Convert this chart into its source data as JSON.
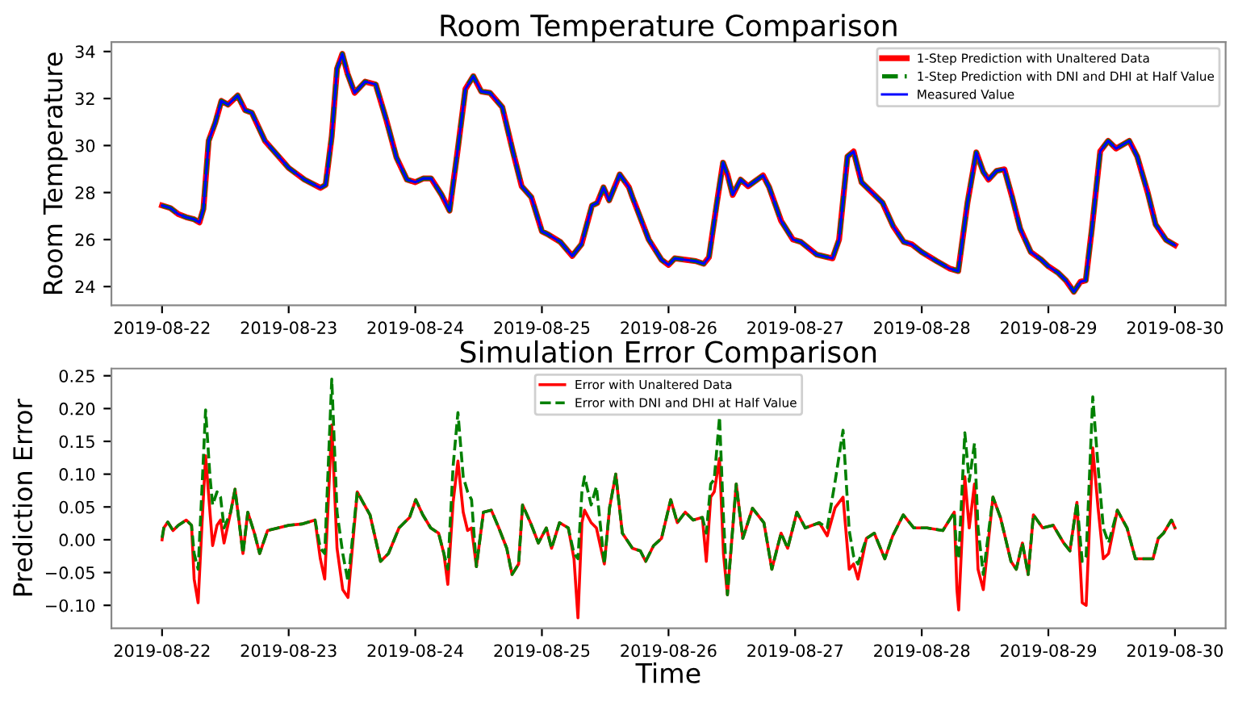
{
  "chart_data": [
    {
      "type": "line",
      "title": "Room Temperature Comparison",
      "ylabel": "Room Temperature",
      "legend": "top right",
      "grid": false,
      "x": [
        "2019-08-22T00:00",
        "2019-08-22T01:35",
        "2019-08-22T03:05",
        "2019-08-22T04:35",
        "2019-08-22T06:05",
        "2019-08-22T07:05",
        "2019-08-22T07:50",
        "2019-08-22T08:50",
        "2019-08-22T10:05",
        "2019-08-22T11:15",
        "2019-08-22T12:30",
        "2019-08-22T14:20",
        "2019-08-22T15:45",
        "2019-08-22T17:00",
        "2019-08-22T19:30",
        "2019-08-23T00:00",
        "2019-08-23T03:00",
        "2019-08-23T06:00",
        "2019-08-23T07:00",
        "2019-08-23T08:10",
        "2019-08-23T09:10",
        "2019-08-23T10:10",
        "2019-08-23T11:10",
        "2019-08-23T12:30",
        "2019-08-23T14:30",
        "2019-08-23T16:30",
        "2019-08-23T18:30",
        "2019-08-23T20:25",
        "2019-08-23T22:25",
        "2019-08-24T00:00",
        "2019-08-24T01:30",
        "2019-08-24T03:00",
        "2019-08-24T05:00",
        "2019-08-24T06:30",
        "2019-08-24T08:00",
        "2019-08-24T09:30",
        "2019-08-24T11:00",
        "2019-08-24T12:30",
        "2019-08-24T14:10",
        "2019-08-24T16:30",
        "2019-08-24T18:30",
        "2019-08-24T20:10",
        "2019-08-24T22:00",
        "2019-08-25T00:00",
        "2019-08-25T01:00",
        "2019-08-25T03:30",
        "2019-08-25T05:45",
        "2019-08-25T07:30",
        "2019-08-25T09:30",
        "2019-08-25T10:30",
        "2019-08-25T11:40",
        "2019-08-25T12:45",
        "2019-08-25T14:45",
        "2019-08-25T16:30",
        "2019-08-25T17:10",
        "2019-08-25T20:15",
        "2019-08-25T22:40",
        "2019-08-26T00:00",
        "2019-08-26T01:10",
        "2019-08-26T03:10",
        "2019-08-26T05:10",
        "2019-08-26T06:40",
        "2019-08-26T07:40",
        "2019-08-26T09:10",
        "2019-08-26T10:20",
        "2019-08-26T11:10",
        "2019-08-26T12:10",
        "2019-08-26T13:40",
        "2019-08-26T15:05",
        "2019-08-26T17:55",
        "2019-08-26T19:05",
        "2019-08-26T21:20",
        "2019-08-26T23:35",
        "2019-08-27T01:05",
        "2019-08-27T04:05",
        "2019-08-27T07:05",
        "2019-08-27T08:20",
        "2019-08-27T09:55",
        "2019-08-27T11:05",
        "2019-08-27T12:35",
        "2019-08-27T14:35",
        "2019-08-27T16:35",
        "2019-08-27T18:35",
        "2019-08-27T20:35",
        "2019-08-27T22:05",
        "2019-08-28T00:00",
        "2019-08-28T02:50",
        "2019-08-28T05:15",
        "2019-08-28T06:55",
        "2019-08-28T08:40",
        "2019-08-28T10:20",
        "2019-08-28T11:40",
        "2019-08-28T12:40",
        "2019-08-28T14:10",
        "2019-08-28T15:40",
        "2019-08-28T17:10",
        "2019-08-28T18:40",
        "2019-08-28T20:40",
        "2019-08-28T22:40",
        "2019-08-29T00:00",
        "2019-08-29T01:50",
        "2019-08-29T03:20",
        "2019-08-29T04:50",
        "2019-08-29T06:05",
        "2019-08-29T07:05",
        "2019-08-29T08:15",
        "2019-08-29T09:50",
        "2019-08-29T11:20",
        "2019-08-29T12:50",
        "2019-08-29T15:20",
        "2019-08-29T16:50",
        "2019-08-29T18:50",
        "2019-08-29T20:20",
        "2019-08-29T22:20",
        "2019-08-30T00:00"
      ],
      "series": [
        {
          "name": "1-Step Prediction with Unaltered Data",
          "color": "#ff0000",
          "line_style": "solid",
          "values": [
            27.45,
            27.34,
            27.08,
            26.95,
            26.86,
            26.73,
            27.3,
            30.2,
            30.97,
            31.9,
            31.74,
            32.13,
            31.5,
            31.4,
            30.2,
            29.05,
            28.55,
            28.2,
            28.33,
            30.4,
            33.27,
            33.9,
            33.05,
            32.24,
            32.72,
            32.6,
            31.1,
            29.5,
            28.55,
            28.44,
            28.6,
            28.6,
            27.9,
            27.23,
            29.75,
            32.4,
            32.95,
            32.3,
            32.24,
            31.63,
            29.75,
            28.27,
            27.8,
            26.35,
            26.24,
            25.9,
            25.3,
            25.8,
            27.45,
            27.56,
            28.22,
            27.67,
            28.77,
            28.22,
            27.8,
            26.0,
            25.14,
            24.92,
            25.2,
            25.14,
            25.08,
            24.97,
            25.25,
            27.56,
            29.27,
            28.77,
            27.9,
            28.55,
            28.27,
            28.73,
            28.22,
            26.8,
            26.0,
            25.9,
            25.36,
            25.2,
            26.0,
            29.53,
            29.75,
            28.44,
            28.0,
            27.56,
            26.57,
            25.9,
            25.8,
            25.47,
            25.08,
            24.77,
            24.66,
            27.56,
            29.71,
            28.88,
            28.55,
            28.92,
            28.99,
            27.78,
            26.46,
            25.47,
            25.14,
            24.86,
            24.59,
            24.26,
            23.78,
            24.2,
            24.26,
            26.46,
            29.76,
            30.2,
            29.87,
            30.2,
            29.54,
            28.0,
            26.64,
            25.98,
            25.76
          ]
        },
        {
          "name": "1-Step Prediction with DNI and DHI at Half Value",
          "color": "#008000",
          "line_style": "dashed",
          "values": [
            27.45,
            27.34,
            27.08,
            26.95,
            26.86,
            26.73,
            27.3,
            30.2,
            30.97,
            31.9,
            31.74,
            32.13,
            31.5,
            31.4,
            30.2,
            29.05,
            28.55,
            28.2,
            28.33,
            30.4,
            33.27,
            33.9,
            33.05,
            32.24,
            32.72,
            32.6,
            31.1,
            29.5,
            28.55,
            28.44,
            28.6,
            28.6,
            27.9,
            27.23,
            29.75,
            32.4,
            32.95,
            32.3,
            32.24,
            31.63,
            29.75,
            28.27,
            27.8,
            26.35,
            26.24,
            25.9,
            25.3,
            25.8,
            27.45,
            27.56,
            28.22,
            27.67,
            28.77,
            28.22,
            27.8,
            26.0,
            25.14,
            24.92,
            25.2,
            25.14,
            25.08,
            24.97,
            25.25,
            27.56,
            29.27,
            28.77,
            27.9,
            28.55,
            28.27,
            28.73,
            28.22,
            26.8,
            26.0,
            25.9,
            25.36,
            25.2,
            26.0,
            29.53,
            29.75,
            28.44,
            28.0,
            27.56,
            26.57,
            25.9,
            25.8,
            25.47,
            25.08,
            24.77,
            24.66,
            27.56,
            29.71,
            28.88,
            28.55,
            28.92,
            28.99,
            27.78,
            26.46,
            25.47,
            25.14,
            24.86,
            24.59,
            24.26,
            23.78,
            24.2,
            24.26,
            26.46,
            29.76,
            30.2,
            29.87,
            30.2,
            29.54,
            28.0,
            26.64,
            25.98,
            25.76
          ]
        },
        {
          "name": "Measured Value",
          "color": "#0000ff",
          "line_style": "solid",
          "values": [
            27.45,
            27.34,
            27.08,
            26.95,
            26.86,
            26.73,
            27.3,
            30.2,
            30.97,
            31.9,
            31.74,
            32.13,
            31.5,
            31.4,
            30.2,
            29.05,
            28.55,
            28.2,
            28.33,
            30.4,
            33.27,
            33.9,
            33.05,
            32.24,
            32.72,
            32.6,
            31.1,
            29.5,
            28.55,
            28.44,
            28.6,
            28.6,
            27.9,
            27.23,
            29.75,
            32.4,
            32.95,
            32.3,
            32.24,
            31.63,
            29.75,
            28.27,
            27.8,
            26.35,
            26.24,
            25.9,
            25.3,
            25.8,
            27.45,
            27.56,
            28.22,
            27.67,
            28.77,
            28.22,
            27.8,
            26.0,
            25.14,
            24.92,
            25.2,
            25.14,
            25.08,
            24.97,
            25.25,
            27.56,
            29.27,
            28.77,
            27.9,
            28.55,
            28.27,
            28.73,
            28.22,
            26.8,
            26.0,
            25.9,
            25.36,
            25.2,
            26.0,
            29.53,
            29.75,
            28.44,
            28.0,
            27.56,
            26.57,
            25.9,
            25.8,
            25.47,
            25.08,
            24.77,
            24.66,
            27.56,
            29.71,
            28.88,
            28.55,
            28.92,
            28.99,
            27.78,
            26.46,
            25.47,
            25.14,
            24.86,
            24.59,
            24.26,
            23.78,
            24.2,
            24.26,
            26.46,
            29.76,
            30.2,
            29.87,
            30.2,
            29.54,
            28.0,
            26.64,
            25.98,
            25.76
          ]
        }
      ],
      "xlim": [
        "2019-08-21T14:24",
        "2019-08-30T09:36"
      ],
      "xticks": [
        "2019-08-22",
        "2019-08-23",
        "2019-08-24",
        "2019-08-25",
        "2019-08-26",
        "2019-08-27",
        "2019-08-28",
        "2019-08-29",
        "2019-08-30"
      ],
      "ylim": [
        23.2,
        34.4
      ],
      "yticks": [
        24,
        26,
        28,
        30,
        32,
        34
      ]
    },
    {
      "type": "line",
      "title": "Simulation Error Comparison",
      "xlabel": "Time",
      "ylabel": "Prediction Error",
      "legend": "top",
      "grid": false,
      "x": [
        "2019-08-22T00:00",
        "2019-08-22T00:20",
        "2019-08-22T01:05",
        "2019-08-22T02:05",
        "2019-08-22T03:05",
        "2019-08-22T04:35",
        "2019-08-22T05:35",
        "2019-08-22T06:05",
        "2019-08-22T06:50",
        "2019-08-22T07:35",
        "2019-08-22T08:15",
        "2019-08-22T09:05",
        "2019-08-22T09:35",
        "2019-08-22T10:25",
        "2019-08-22T11:05",
        "2019-08-22T11:45",
        "2019-08-22T13:00",
        "2019-08-22T13:50",
        "2019-08-22T14:30",
        "2019-08-22T15:20",
        "2019-08-22T16:15",
        "2019-08-22T17:30",
        "2019-08-22T18:30",
        "2019-08-22T20:00",
        "2019-08-22T22:00",
        "2019-08-23T00:00",
        "2019-08-23T02:30",
        "2019-08-23T05:00",
        "2019-08-23T06:00",
        "2019-08-23T06:50",
        "2019-08-23T08:10",
        "2019-08-23T09:10",
        "2019-08-23T10:15",
        "2019-08-23T11:15",
        "2019-08-23T13:00",
        "2019-08-23T14:05",
        "2019-08-23T15:25",
        "2019-08-23T17:25",
        "2019-08-23T18:55",
        "2019-08-23T20:55",
        "2019-08-23T22:55",
        "2019-08-24T00:05",
        "2019-08-24T01:25",
        "2019-08-24T02:55",
        "2019-08-24T04:25",
        "2019-08-24T05:25",
        "2019-08-24T06:10",
        "2019-08-24T07:10",
        "2019-08-24T08:05",
        "2019-08-24T09:05",
        "2019-08-24T09:55",
        "2019-08-24T10:40",
        "2019-08-24T11:35",
        "2019-08-24T12:55",
        "2019-08-24T14:25",
        "2019-08-24T15:50",
        "2019-08-24T17:20",
        "2019-08-24T18:20",
        "2019-08-24T19:35",
        "2019-08-24T20:20",
        "2019-08-24T21:50",
        "2019-08-24T23:20",
        "2019-08-25T00:50",
        "2019-08-25T01:50",
        "2019-08-25T03:20",
        "2019-08-25T05:00",
        "2019-08-25T06:05",
        "2019-08-25T06:50",
        "2019-08-25T07:35",
        "2019-08-25T08:05",
        "2019-08-25T09:20",
        "2019-08-25T10:20",
        "2019-08-25T11:50",
        "2019-08-25T12:50",
        "2019-08-25T14:00",
        "2019-08-25T15:15",
        "2019-08-25T17:10",
        "2019-08-25T18:40",
        "2019-08-25T19:40",
        "2019-08-25T21:10",
        "2019-08-25T22:40",
        "2019-08-26T00:25",
        "2019-08-26T01:40",
        "2019-08-26T03:10",
        "2019-08-26T04:40",
        "2019-08-26T06:25",
        "2019-08-26T07:10",
        "2019-08-26T08:00",
        "2019-08-26T08:40",
        "2019-08-26T09:40",
        "2019-08-26T10:25",
        "2019-08-26T11:10",
        "2019-08-26T12:50",
        "2019-08-26T14:05",
        "2019-08-26T15:55",
        "2019-08-26T18:05",
        "2019-08-26T19:35",
        "2019-08-26T21:20",
        "2019-08-26T22:35",
        "2019-08-27T00:20",
        "2019-08-27T01:55",
        "2019-08-27T04:35",
        "2019-08-27T06:05",
        "2019-08-27T07:35",
        "2019-08-27T09:05",
        "2019-08-27T10:15",
        "2019-08-27T11:05",
        "2019-08-27T11:55",
        "2019-08-27T13:30",
        "2019-08-27T15:00",
        "2019-08-27T17:00",
        "2019-08-27T18:30",
        "2019-08-27T20:30",
        "2019-08-27T22:30",
        "2019-08-28T01:00",
        "2019-08-28T04:00",
        "2019-08-28T06:10",
        "2019-08-28T06:40",
        "2019-08-28T07:00",
        "2019-08-28T08:10",
        "2019-08-28T09:00",
        "2019-08-28T10:00",
        "2019-08-28T10:40",
        "2019-08-28T11:40",
        "2019-08-28T13:30",
        "2019-08-28T14:55",
        "2019-08-28T16:55",
        "2019-08-28T17:55",
        "2019-08-28T19:05",
        "2019-08-28T20:10",
        "2019-08-28T21:10",
        "2019-08-28T22:55",
        "2019-08-29T00:55",
        "2019-08-29T02:55",
        "2019-08-29T04:05",
        "2019-08-29T05:25",
        "2019-08-29T06:25",
        "2019-08-29T07:10",
        "2019-08-29T08:25",
        "2019-08-29T09:25",
        "2019-08-29T10:25",
        "2019-08-29T11:25",
        "2019-08-29T13:05",
        "2019-08-29T14:55",
        "2019-08-29T16:30",
        "2019-08-29T18:20",
        "2019-08-29T19:50",
        "2019-08-29T20:50",
        "2019-08-29T21:50",
        "2019-08-29T23:20",
        "2019-08-30T00:00"
      ],
      "series": [
        {
          "name": "Error with Unaltered Data",
          "color": "#ff0000",
          "line_style": "solid",
          "values": [
            0.0,
            0.018,
            0.027,
            0.014,
            0.022,
            0.03,
            0.022,
            -0.06,
            -0.096,
            0.026,
            0.128,
            0.042,
            -0.009,
            0.022,
            0.03,
            -0.005,
            0.042,
            0.077,
            0.034,
            -0.021,
            0.042,
            0.01,
            -0.021,
            0.014,
            0.018,
            0.022,
            0.024,
            0.03,
            -0.029,
            -0.06,
            0.175,
            -0.013,
            -0.076,
            -0.088,
            0.073,
            0.057,
            0.038,
            -0.033,
            -0.021,
            0.018,
            0.034,
            0.061,
            0.038,
            0.018,
            0.01,
            -0.021,
            -0.068,
            0.057,
            0.12,
            0.042,
            0.014,
            0.018,
            -0.041,
            0.042,
            0.045,
            0.018,
            -0.013,
            -0.053,
            -0.037,
            0.053,
            0.026,
            -0.005,
            0.018,
            -0.013,
            0.026,
            0.018,
            -0.029,
            -0.119,
            0.026,
            0.045,
            0.026,
            0.018,
            -0.037,
            0.049,
            0.1,
            0.01,
            -0.013,
            -0.017,
            -0.033,
            -0.009,
            0.002,
            0.061,
            0.026,
            0.042,
            0.03,
            0.034,
            -0.033,
            0.065,
            0.073,
            0.124,
            -0.021,
            -0.084,
            0.085,
            0.002,
            0.048,
            0.026,
            -0.045,
            0.01,
            -0.013,
            0.042,
            0.018,
            0.026,
            0.006,
            0.049,
            0.065,
            -0.045,
            -0.037,
            -0.06,
            0.002,
            0.01,
            -0.029,
            0.006,
            0.038,
            0.018,
            0.018,
            0.014,
            0.042,
            -0.076,
            -0.107,
            0.096,
            0.018,
            0.085,
            -0.045,
            -0.076,
            0.065,
            0.034,
            -0.033,
            -0.045,
            -0.005,
            -0.053,
            0.038,
            0.018,
            0.022,
            -0.005,
            -0.017,
            0.057,
            -0.096,
            -0.1,
            0.14,
            0.049,
            -0.029,
            -0.021,
            0.045,
            0.018,
            -0.029,
            -0.029,
            -0.029,
            0.002,
            0.01,
            0.03,
            0.018
          ]
        },
        {
          "name": "Error with DNI and DHI at Half Value",
          "color": "#008000",
          "line_style": "dashed",
          "values": [
            0.003,
            0.018,
            0.027,
            0.014,
            0.022,
            0.03,
            0.022,
            -0.021,
            -0.045,
            0.081,
            0.198,
            0.096,
            0.053,
            0.073,
            0.065,
            0.018,
            0.042,
            0.077,
            0.034,
            -0.021,
            0.042,
            0.01,
            -0.021,
            0.014,
            0.018,
            0.022,
            0.024,
            0.03,
            -0.013,
            -0.021,
            0.245,
            0.042,
            -0.021,
            -0.064,
            0.073,
            0.057,
            0.038,
            -0.033,
            -0.021,
            0.018,
            0.034,
            0.061,
            0.038,
            0.018,
            0.01,
            -0.021,
            -0.045,
            0.112,
            0.194,
            0.096,
            0.073,
            0.061,
            -0.041,
            0.042,
            0.045,
            0.018,
            -0.013,
            -0.053,
            -0.037,
            0.053,
            0.026,
            -0.005,
            0.018,
            -0.013,
            0.026,
            0.018,
            -0.021,
            -0.029,
            0.073,
            0.096,
            0.053,
            0.081,
            -0.037,
            0.049,
            0.1,
            0.01,
            -0.013,
            -0.017,
            -0.033,
            -0.009,
            0.002,
            0.061,
            0.026,
            0.042,
            0.03,
            0.034,
            0.01,
            0.085,
            0.092,
            0.187,
            0.034,
            -0.084,
            0.085,
            0.002,
            0.048,
            0.026,
            -0.045,
            0.01,
            -0.013,
            0.042,
            0.018,
            0.026,
            0.018,
            0.089,
            0.167,
            0.014,
            -0.025,
            -0.037,
            0.002,
            0.01,
            -0.029,
            0.006,
            0.038,
            0.018,
            0.018,
            0.014,
            0.042,
            -0.025,
            -0.029,
            0.163,
            0.089,
            0.147,
            0.018,
            -0.053,
            0.065,
            0.034,
            -0.033,
            -0.045,
            -0.005,
            -0.053,
            0.038,
            0.018,
            0.022,
            -0.005,
            -0.017,
            0.057,
            -0.033,
            -0.025,
            0.218,
            0.112,
            0.018,
            -0.005,
            0.045,
            0.018,
            -0.029,
            -0.029,
            -0.029,
            0.002,
            0.01,
            0.03,
            0.018
          ]
        }
      ],
      "xlim": [
        "2019-08-21T14:24",
        "2019-08-30T09:36"
      ],
      "xticks": [
        "2019-08-22",
        "2019-08-23",
        "2019-08-24",
        "2019-08-25",
        "2019-08-26",
        "2019-08-27",
        "2019-08-28",
        "2019-08-29",
        "2019-08-30"
      ],
      "ylim": [
        -0.135,
        0.261
      ],
      "yticks": [
        {
          "value": -0.1,
          "label": "−0.10"
        },
        {
          "value": -0.05,
          "label": "−0.05"
        },
        {
          "value": 0,
          "label": "0.00"
        },
        {
          "value": 0.05,
          "label": "0.05"
        },
        {
          "value": 0.1,
          "label": "0.10"
        },
        {
          "value": 0.15,
          "label": "0.15"
        },
        {
          "value": 0.2,
          "label": "0.20"
        },
        {
          "value": 0.25,
          "label": "0.25"
        }
      ]
    }
  ]
}
